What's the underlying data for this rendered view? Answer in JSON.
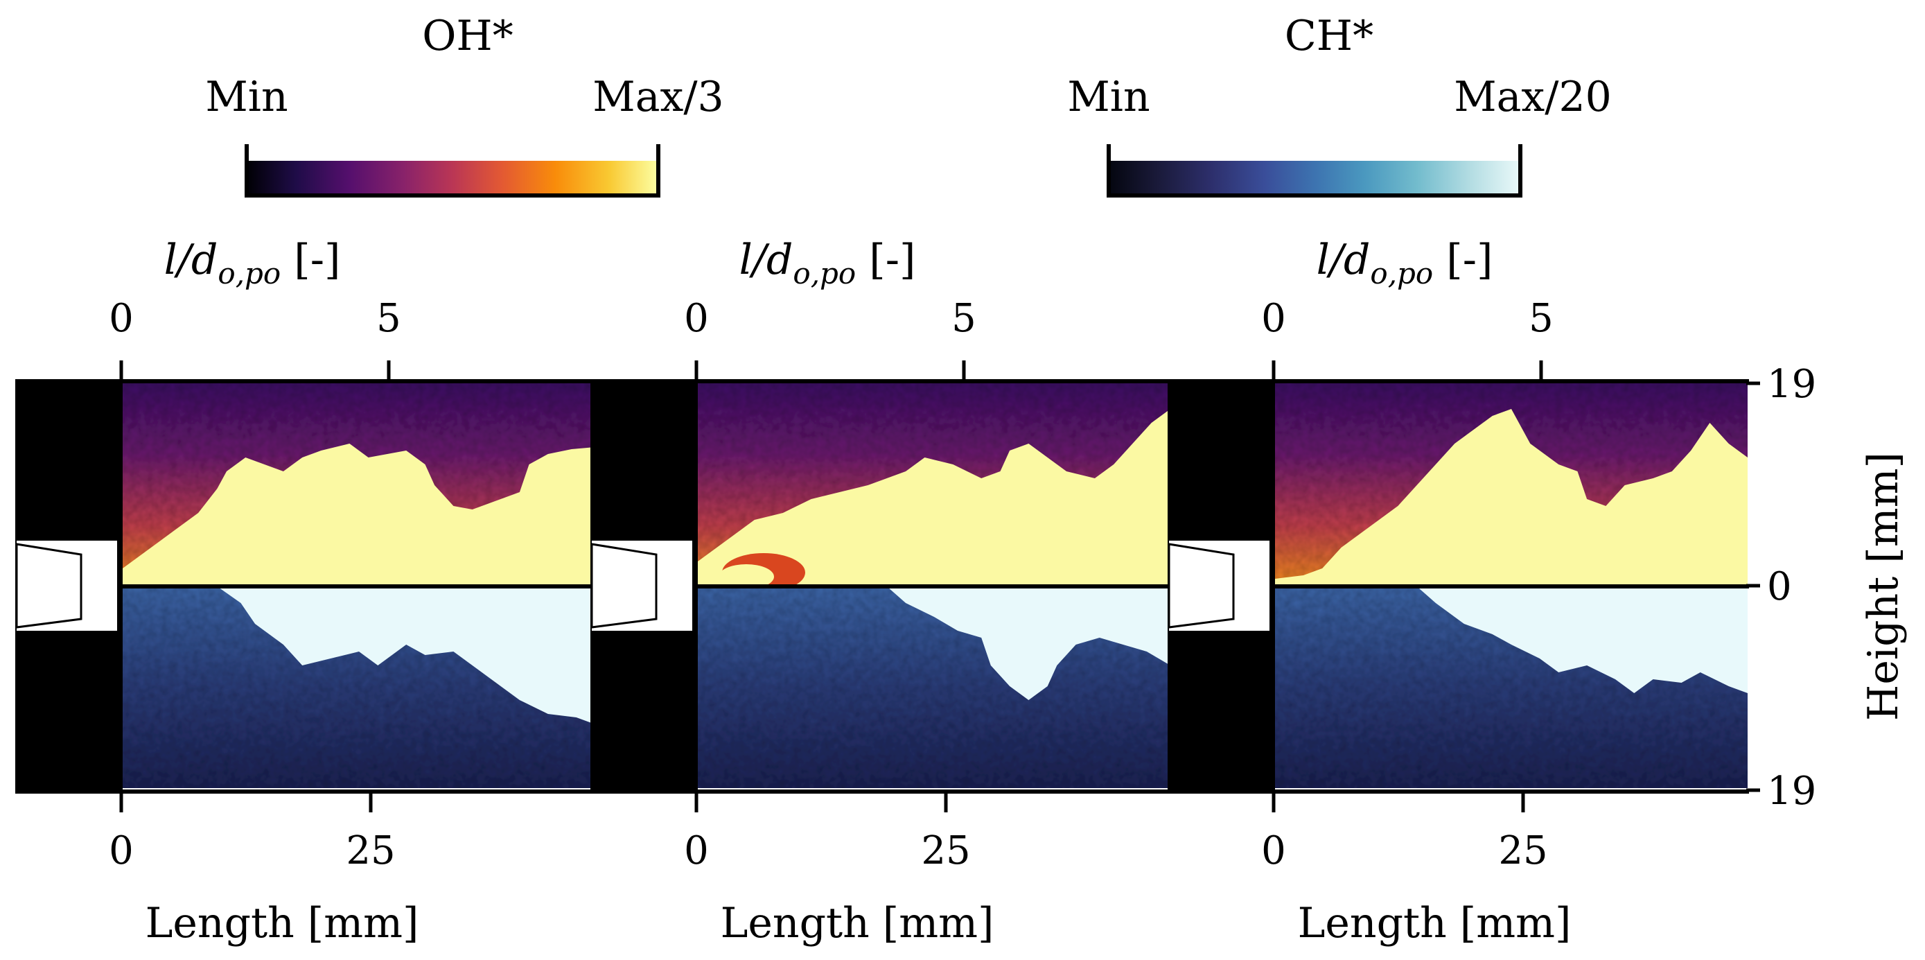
{
  "colorbars": [
    {
      "title": "OH*",
      "min_label": "Min",
      "max_label": "Max/3",
      "colormap": "inferno"
    },
    {
      "title": "CH*",
      "min_label": "Min",
      "max_label": "Max/20",
      "colormap": "ice"
    }
  ],
  "top_axis": {
    "label_main": "l/d",
    "label_sub": "o,po",
    "label_unit": "[-]",
    "ticks": [
      "0",
      "5"
    ]
  },
  "bottom_axis": {
    "label": "Length [mm]",
    "ticks": [
      "0",
      "25"
    ]
  },
  "right_axis": {
    "label": "Height [mm]",
    "ticks": [
      "19",
      "0",
      "19"
    ]
  },
  "panels": [
    {
      "name": "panel-1",
      "top_colormap": "inferno",
      "bottom_colormap": "ice"
    },
    {
      "name": "panel-2",
      "top_colormap": "inferno",
      "bottom_colormap": "ice"
    },
    {
      "name": "panel-3",
      "top_colormap": "inferno",
      "bottom_colormap": "ice"
    }
  ],
  "colors": {
    "inferno": [
      "#000004",
      "#1f0c48",
      "#550f6d",
      "#88226a",
      "#ba3655",
      "#e35933",
      "#f98c0a",
      "#f9c932",
      "#fcffa4"
    ],
    "ice": [
      "#04060f",
      "#1a1a3a",
      "#2d2f6c",
      "#3a4e9a",
      "#3d73b0",
      "#4a98bf",
      "#73bccd",
      "#b4dde3",
      "#eaf9f9"
    ],
    "saturated_top": "#fbf9a3",
    "saturated_bottom": "#e8f9fb",
    "background_block": "#000000"
  }
}
